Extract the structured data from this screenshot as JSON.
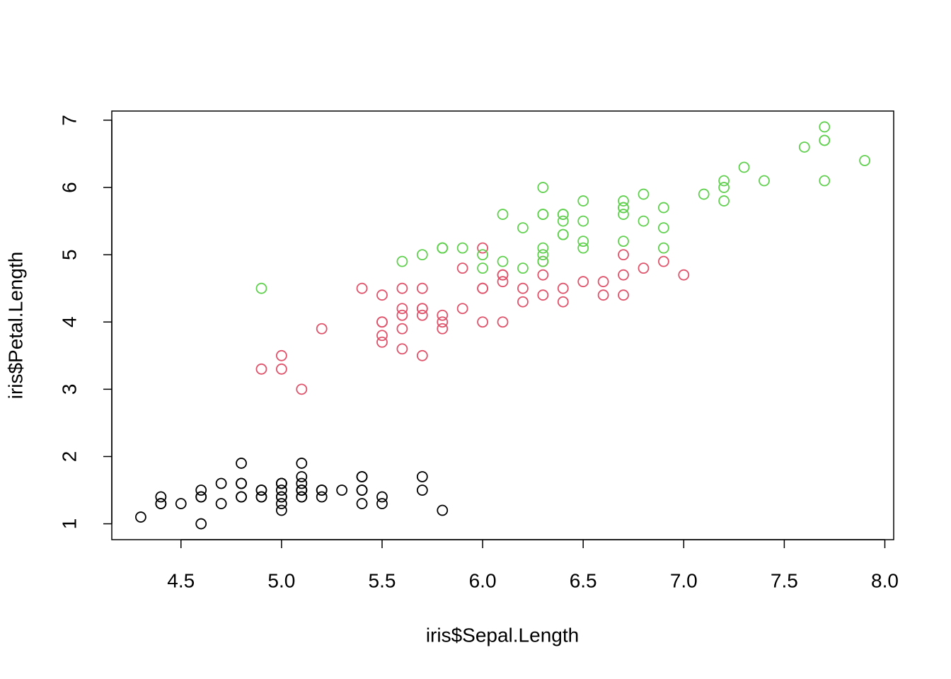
{
  "chart_data": {
    "type": "scatter",
    "x_label": "iris$Sepal.Length",
    "y_label": "iris$Petal.Length",
    "xlim": [
      4.156,
      8.044
    ],
    "ylim": [
      0.764,
      7.136
    ],
    "xticks": [
      4.5,
      {
        "value": 5,
        "label": "5.0"
      },
      5.5,
      {
        "value": 6,
        "label": "6.0"
      },
      6.5,
      {
        "value": 7,
        "label": "7.0"
      },
      7.5,
      {
        "value": 8,
        "label": "8.0"
      }
    ],
    "yticks": [
      1,
      2,
      3,
      4,
      5,
      6,
      7
    ],
    "grid": false,
    "series": [
      {
        "color": "#000000",
        "x": [
          5.1,
          4.9,
          4.7,
          4.6,
          5.0,
          5.4,
          4.6,
          5.0,
          4.4,
          4.9,
          5.4,
          4.8,
          4.8,
          4.3,
          5.8,
          5.7,
          5.4,
          5.1,
          5.7,
          5.1,
          5.4,
          5.1,
          4.6,
          5.1,
          4.8,
          5.0,
          5.0,
          5.2,
          5.2,
          4.7,
          4.8,
          5.4,
          5.2,
          5.5,
          4.9,
          5.0,
          5.5,
          4.9,
          4.4,
          5.1,
          5.0,
          4.5,
          4.4,
          5.0,
          5.1,
          4.8,
          5.1,
          4.6,
          5.3,
          5.0
        ],
        "values": [
          1.4,
          1.4,
          1.3,
          1.5,
          1.4,
          1.7,
          1.4,
          1.5,
          1.4,
          1.5,
          1.5,
          1.6,
          1.4,
          1.1,
          1.2,
          1.5,
          1.3,
          1.4,
          1.7,
          1.5,
          1.7,
          1.5,
          1.0,
          1.7,
          1.9,
          1.6,
          1.6,
          1.5,
          1.4,
          1.6,
          1.6,
          1.5,
          1.5,
          1.4,
          1.5,
          1.2,
          1.3,
          1.4,
          1.3,
          1.5,
          1.3,
          1.3,
          1.3,
          1.6,
          1.9,
          1.4,
          1.6,
          1.4,
          1.5,
          1.4
        ]
      },
      {
        "color": "#DF536B",
        "x": [
          7.0,
          6.4,
          6.9,
          5.5,
          6.5,
          5.7,
          6.3,
          4.9,
          6.6,
          5.2,
          5.0,
          5.9,
          6.0,
          6.1,
          5.6,
          6.7,
          5.6,
          5.8,
          6.2,
          5.6,
          5.9,
          6.1,
          6.3,
          6.1,
          6.4,
          6.6,
          6.8,
          6.7,
          6.0,
          5.7,
          5.5,
          5.5,
          5.8,
          6.0,
          5.4,
          6.0,
          6.7,
          6.3,
          5.6,
          5.5,
          5.5,
          6.1,
          5.8,
          5.0,
          5.6,
          5.7,
          5.7,
          6.2,
          5.1,
          5.7
        ],
        "values": [
          4.7,
          4.5,
          4.9,
          4.0,
          4.6,
          4.5,
          4.7,
          3.3,
          4.6,
          3.9,
          3.5,
          4.2,
          4.0,
          4.7,
          3.6,
          4.4,
          4.5,
          4.1,
          4.5,
          3.9,
          4.8,
          4.0,
          4.9,
          4.7,
          4.3,
          4.4,
          4.8,
          5.0,
          4.5,
          3.5,
          3.8,
          3.7,
          3.9,
          5.1,
          4.5,
          4.5,
          4.7,
          4.4,
          4.1,
          4.0,
          4.4,
          4.6,
          4.0,
          3.3,
          4.2,
          4.2,
          4.2,
          4.3,
          3.0,
          4.1
        ]
      },
      {
        "color": "#61D04F",
        "x": [
          6.3,
          5.8,
          7.1,
          6.3,
          6.5,
          7.6,
          4.9,
          7.3,
          6.7,
          7.2,
          6.5,
          6.4,
          6.8,
          5.7,
          5.8,
          6.4,
          6.5,
          7.7,
          7.7,
          6.0,
          6.9,
          5.6,
          7.7,
          6.3,
          6.7,
          7.2,
          6.2,
          6.1,
          6.4,
          7.2,
          7.4,
          7.9,
          6.4,
          6.3,
          6.1,
          7.7,
          6.3,
          6.4,
          6.0,
          6.9,
          6.7,
          6.9,
          5.8,
          6.8,
          6.7,
          6.7,
          6.3,
          6.5,
          6.2,
          5.9
        ],
        "values": [
          6.0,
          5.1,
          5.9,
          5.6,
          5.8,
          6.6,
          4.5,
          6.3,
          5.8,
          6.1,
          5.1,
          5.3,
          5.5,
          5.0,
          5.1,
          5.3,
          5.5,
          6.7,
          6.9,
          5.0,
          5.7,
          4.9,
          6.7,
          4.9,
          5.7,
          6.0,
          4.8,
          4.9,
          5.6,
          5.8,
          6.1,
          6.4,
          5.6,
          5.1,
          5.6,
          6.1,
          5.6,
          5.5,
          4.8,
          5.4,
          5.6,
          5.1,
          5.1,
          5.9,
          5.7,
          5.2,
          5.0,
          5.2,
          5.4,
          5.1
        ]
      }
    ]
  }
}
